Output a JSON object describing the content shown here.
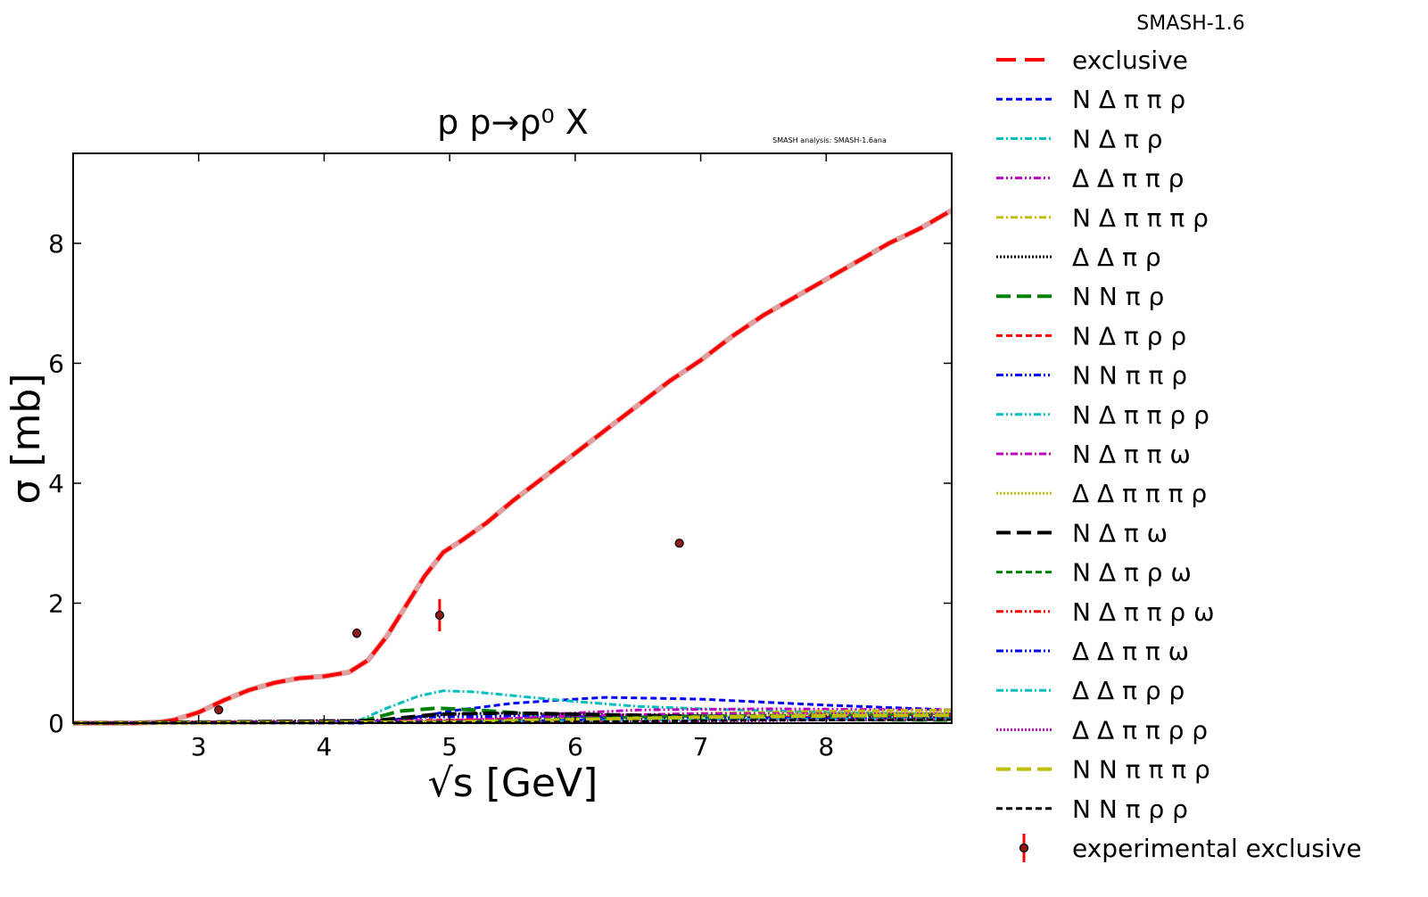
{
  "chart_data": {
    "type": "line",
    "title": "p p→ρ⁰ X",
    "watermark": "SMASH analysis: SMASH-1.6ana",
    "legend_title": "SMASH-1.6",
    "legend_placement": "outside-right",
    "grid": false,
    "xlabel": "√s [GeV]",
    "ylabel": "σ [mb]",
    "xlim": [
      2.0,
      9.0
    ],
    "ylim": [
      0,
      9.5
    ],
    "xticks": [
      3,
      4,
      5,
      6,
      7,
      8
    ],
    "yticks": [
      0,
      2,
      4,
      6,
      8
    ],
    "series": [
      {
        "name": "exclusive",
        "color": "#ff0000",
        "dash": "22,10",
        "width": 4,
        "underlay": "#e0a0a0",
        "x": [
          2.0,
          2.5,
          2.7,
          2.8,
          3.0,
          3.2,
          3.4,
          3.6,
          3.8,
          4.0,
          4.2,
          4.35,
          4.5,
          4.65,
          4.8,
          4.95,
          5.1,
          5.3,
          5.5,
          5.75,
          6.0,
          6.25,
          6.5,
          6.75,
          7.0,
          7.25,
          7.5,
          7.75,
          8.0,
          8.25,
          8.5,
          8.75,
          9.0
        ],
        "y": [
          0.0,
          0.0,
          0.02,
          0.05,
          0.18,
          0.38,
          0.55,
          0.67,
          0.75,
          0.78,
          0.85,
          1.05,
          1.45,
          1.95,
          2.45,
          2.85,
          3.05,
          3.35,
          3.7,
          4.1,
          4.5,
          4.9,
          5.3,
          5.7,
          6.05,
          6.45,
          6.8,
          7.1,
          7.4,
          7.7,
          8.0,
          8.25,
          8.55
        ]
      },
      {
        "name": "N Δ π π ρ",
        "color": "#0000ff",
        "dash": "7,4",
        "width": 3,
        "x": [
          2.0,
          4.3,
          4.5,
          4.8,
          5.0,
          5.5,
          6.0,
          6.25,
          7.0,
          8.0,
          9.0
        ],
        "y": [
          0.0,
          0.0,
          0.04,
          0.12,
          0.2,
          0.33,
          0.4,
          0.43,
          0.4,
          0.3,
          0.22
        ]
      },
      {
        "name": "N Δ π ρ",
        "color": "#00bfbf",
        "dash": "8,3,2,3",
        "width": 3,
        "x": [
          2.0,
          4.25,
          4.5,
          4.75,
          4.95,
          5.2,
          5.5,
          6.0,
          6.5,
          7.0,
          8.0,
          9.0
        ],
        "y": [
          0.0,
          0.02,
          0.25,
          0.45,
          0.54,
          0.52,
          0.46,
          0.36,
          0.28,
          0.24,
          0.18,
          0.15
        ]
      },
      {
        "name": "Δ Δ π π ρ",
        "color": "#bf00bf",
        "dash": "8,3,2,3,2,3",
        "width": 3,
        "x": [
          2.0,
          4.9,
          5.5,
          6.5,
          7.5,
          9.0
        ],
        "y": [
          0.0,
          0.03,
          0.12,
          0.22,
          0.24,
          0.22
        ]
      },
      {
        "name": "N Δ π π π ρ",
        "color": "#bfbf00",
        "dash": "8,3,2,3",
        "width": 3,
        "x": [
          2.0,
          5.0,
          6.0,
          7.0,
          8.0,
          9.0
        ],
        "y": [
          0.0,
          0.02,
          0.1,
          0.16,
          0.2,
          0.22
        ]
      },
      {
        "name": "Δ Δ π ρ",
        "color": "#000000",
        "dash": "2,2",
        "width": 3,
        "x": [
          2.0,
          4.5,
          5.0,
          5.5,
          6.0,
          7.0,
          8.0,
          9.0
        ],
        "y": [
          0.0,
          0.05,
          0.15,
          0.17,
          0.15,
          0.12,
          0.1,
          0.09
        ]
      },
      {
        "name": "N N π ρ",
        "color": "#008000",
        "dash": "16,7",
        "width": 4,
        "x": [
          2.0,
          4.3,
          4.6,
          4.9,
          5.2,
          5.6,
          6.0,
          7.0,
          8.0,
          9.0
        ],
        "y": [
          0.0,
          0.03,
          0.2,
          0.25,
          0.22,
          0.16,
          0.12,
          0.08,
          0.06,
          0.05
        ]
      },
      {
        "name": "N Δ π ρ ρ",
        "color": "#ff0000",
        "dash": "7,4",
        "width": 3,
        "x": [
          2.0,
          3.0,
          4.0,
          5.0,
          6.0,
          7.0,
          8.0,
          9.0
        ],
        "y": [
          0.0,
          0.02,
          0.03,
          0.05,
          0.08,
          0.12,
          0.14,
          0.15
        ]
      },
      {
        "name": "N N π π ρ",
        "color": "#0000ff",
        "dash": "8,3,2,3,2,3",
        "width": 3,
        "x": [
          2.0,
          4.4,
          4.8,
          5.5,
          6.5,
          9.0
        ],
        "y": [
          0.0,
          0.03,
          0.1,
          0.12,
          0.1,
          0.08
        ]
      },
      {
        "name": "N Δ π π ρ ρ",
        "color": "#00bfbf",
        "dash": "8,3,2,3,2,3",
        "width": 3,
        "x": [
          2.0,
          5.0,
          6.5,
          8.0,
          9.0
        ],
        "y": [
          0.0,
          0.01,
          0.05,
          0.1,
          0.12
        ]
      },
      {
        "name": "N Δ π π ω",
        "color": "#bf00bf",
        "dash": "8,3,2,3",
        "width": 3,
        "x": [
          2.0,
          5.0,
          6.0,
          7.0,
          9.0
        ],
        "y": [
          0.0,
          0.04,
          0.12,
          0.16,
          0.16
        ]
      },
      {
        "name": "Δ Δ π π π ρ",
        "color": "#bfbf00",
        "dash": "2,2",
        "width": 3,
        "x": [
          2.0,
          5.5,
          6.5,
          7.5,
          9.0
        ],
        "y": [
          0.0,
          0.02,
          0.08,
          0.14,
          0.18
        ]
      },
      {
        "name": "N Δ π ω",
        "color": "#000000",
        "dash": "16,7",
        "width": 4,
        "x": [
          2.0,
          4.4,
          4.9,
          5.5,
          6.5,
          7.5,
          9.0
        ],
        "y": [
          0.0,
          0.04,
          0.15,
          0.17,
          0.13,
          0.1,
          0.08
        ]
      },
      {
        "name": "N Δ π ρ ω",
        "color": "#008000",
        "dash": "7,4",
        "width": 3,
        "x": [
          2.0,
          5.0,
          6.0,
          7.0,
          9.0
        ],
        "y": [
          0.0,
          0.02,
          0.08,
          0.12,
          0.14
        ]
      },
      {
        "name": "N Δ π π ρ ω",
        "color": "#ff0000",
        "dash": "8,3,2,3,2,3",
        "width": 3,
        "x": [
          2.0,
          5.5,
          6.5,
          7.5,
          9.0
        ],
        "y": [
          0.0,
          0.01,
          0.05,
          0.09,
          0.12
        ]
      },
      {
        "name": "Δ Δ π π ω",
        "color": "#0000ff",
        "dash": "8,3,2,3,2,3",
        "width": 3,
        "x": [
          2.0,
          5.2,
          6.2,
          7.2,
          9.0
        ],
        "y": [
          0.0,
          0.02,
          0.06,
          0.08,
          0.09
        ]
      },
      {
        "name": "Δ Δ π ρ ρ",
        "color": "#00bfbf",
        "dash": "8,3,2,3",
        "width": 3,
        "x": [
          2.0,
          5.2,
          6.2,
          7.2,
          9.0
        ],
        "y": [
          0.0,
          0.01,
          0.04,
          0.06,
          0.07
        ]
      },
      {
        "name": "Δ Δ π π ρ ρ",
        "color": "#bf00bf",
        "dash": "2,2",
        "width": 3,
        "x": [
          2.0,
          6.0,
          7.0,
          8.0,
          9.0
        ],
        "y": [
          0.0,
          0.01,
          0.03,
          0.05,
          0.06
        ]
      },
      {
        "name": "N N π π π ρ",
        "color": "#bfbf00",
        "dash": "16,7",
        "width": 4,
        "x": [
          2.0,
          5.0,
          6.0,
          7.0,
          8.0,
          9.0
        ],
        "y": [
          0.0,
          0.02,
          0.06,
          0.1,
          0.12,
          0.13
        ]
      },
      {
        "name": "N N π ρ ρ",
        "color": "#000000",
        "dash": "7,4",
        "width": 3,
        "x": [
          2.0,
          5.5,
          6.5,
          7.5,
          9.0
        ],
        "y": [
          0.0,
          0.01,
          0.03,
          0.05,
          0.06
        ]
      }
    ],
    "experimental": {
      "name": "experimental exclusive",
      "color": "#ff0000",
      "marker_color": "#8b1a1a",
      "points": [
        {
          "x": 3.16,
          "y": 0.22,
          "err": 0.06
        },
        {
          "x": 4.26,
          "y": 1.5,
          "err": 0.08
        },
        {
          "x": 4.92,
          "y": 1.8,
          "err": 0.27
        },
        {
          "x": 6.83,
          "y": 3.0,
          "err": 0.06
        }
      ]
    }
  }
}
